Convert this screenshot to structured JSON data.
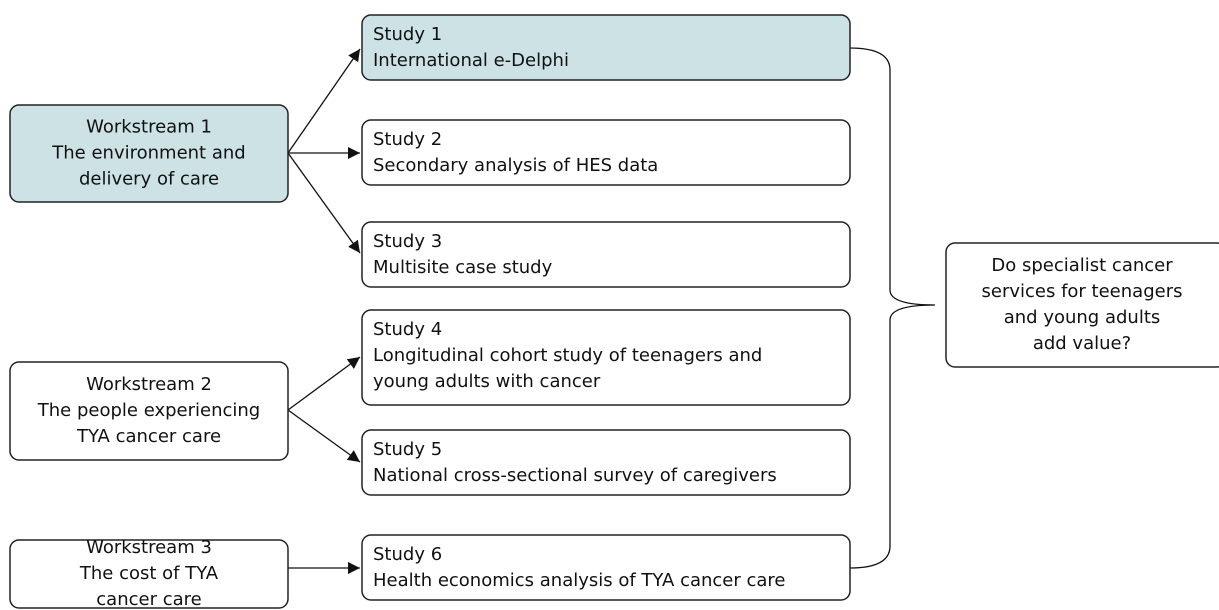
{
  "workstreams": [
    {
      "lines": [
        "Workstream 1",
        "The environment and",
        "delivery of care"
      ]
    },
    {
      "lines": [
        "Workstream 2",
        "The people experiencing",
        "TYA cancer care"
      ]
    },
    {
      "lines": [
        "Workstream 3",
        "The cost of TYA",
        "cancer care"
      ]
    }
  ],
  "studies": [
    {
      "lines": [
        "Study 1",
        "International e-Delphi"
      ]
    },
    {
      "lines": [
        "Study 2",
        "Secondary analysis of HES data"
      ]
    },
    {
      "lines": [
        "Study 3",
        "Multisite case study"
      ]
    },
    {
      "lines": [
        "Study 4",
        "Longitudinal cohort study of teenagers and",
        "young adults with cancer"
      ]
    },
    {
      "lines": [
        "Study 5",
        "National cross-sectional survey of caregivers"
      ]
    },
    {
      "lines": [
        "Study 6",
        "Health economics analysis of TYA cancer care"
      ]
    }
  ],
  "outcome": {
    "lines": [
      "Do specialist cancer",
      "services for teenagers",
      "and young adults",
      "add value?"
    ]
  }
}
